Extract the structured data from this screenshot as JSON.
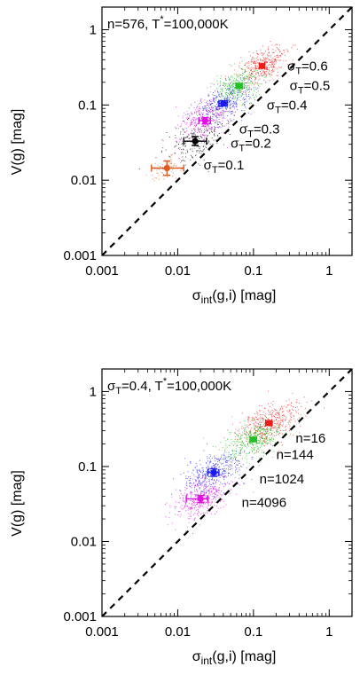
{
  "chart_data": [
    {
      "type": "scatter",
      "xscale": "log",
      "yscale": "log",
      "xlim": [
        0.001,
        2
      ],
      "ylim": [
        0.001,
        2
      ],
      "xticks": [
        "0.001",
        "0.01",
        "0.1",
        "1"
      ],
      "yticks": [
        "0.001",
        "0.01",
        "0.1",
        "1"
      ],
      "xlabel": {
        "main": "σ",
        "sub": "int",
        "tail": "(g,i) [mag]"
      },
      "ylabel": "V(g) [mag]",
      "header": {
        "prefix": "n=576, T",
        "sup": "*",
        "suffix": "=100,000K"
      },
      "diagonal": "y = x (dashed)",
      "grid": false,
      "series": [
        {
          "label": "σT=0.1",
          "color": "#e0581e",
          "x": 0.0072,
          "y": 0.0145,
          "xerr": [
            0.0045,
            0.012
          ],
          "yerr": [
            0.0116,
            0.018
          ],
          "cloud_spread": 0.12,
          "cloud_n": 60
        },
        {
          "label": "σT=0.2",
          "color": "#000000",
          "x": 0.017,
          "y": 0.033,
          "xerr": [
            0.012,
            0.024
          ],
          "yerr": [
            0.029,
            0.038
          ],
          "cloud_spread": 0.22,
          "cloud_n": 220
        },
        {
          "label": "σT=0.3",
          "color": "#e010e0",
          "x": 0.023,
          "y": 0.062,
          "xerr": [
            0.019,
            0.027
          ],
          "yerr": [
            0.056,
            0.068
          ],
          "cloud_spread": 0.2,
          "cloud_n": 320
        },
        {
          "label": "σT=0.4",
          "color": "#1a1aee",
          "x": 0.04,
          "y": 0.105,
          "xerr": [
            0.035,
            0.045
          ],
          "yerr": [
            0.097,
            0.114
          ],
          "cloud_spread": 0.2,
          "cloud_n": 360
        },
        {
          "label": "σT=0.5",
          "color": "#22c022",
          "x": 0.065,
          "y": 0.18,
          "xerr": [
            0.059,
            0.071
          ],
          "yerr": [
            0.167,
            0.193
          ],
          "cloud_spread": 0.18,
          "cloud_n": 360
        },
        {
          "label": "σT=0.6",
          "color": "#ee1a1a",
          "x": 0.13,
          "y": 0.33,
          "xerr": [
            0.12,
            0.14
          ],
          "yerr": [
            0.31,
            0.35
          ],
          "cloud_spread": 0.17,
          "cloud_n": 360
        }
      ],
      "annotations": [
        {
          "text": "σT=0.6",
          "x": 0.28,
          "y": 0.33
        },
        {
          "text": "σT=0.5",
          "x": 0.3,
          "y": 0.18
        },
        {
          "text": "σT=0.4",
          "x": 0.15,
          "y": 0.1
        },
        {
          "text": "σT=0.3",
          "x": 0.065,
          "y": 0.048
        },
        {
          "text": "σT=0.2",
          "x": 0.05,
          "y": 0.031
        },
        {
          "text": "σT=0.1",
          "x": 0.022,
          "y": 0.016
        }
      ]
    },
    {
      "type": "scatter",
      "xscale": "log",
      "yscale": "log",
      "xlim": [
        0.001,
        2
      ],
      "ylim": [
        0.001,
        2
      ],
      "xticks": [
        "0.001",
        "0.01",
        "0.1",
        "1"
      ],
      "yticks": [
        "0.001",
        "0.01",
        "0.1",
        "1"
      ],
      "xlabel": {
        "main": "σ",
        "sub": "int",
        "tail": "(g,i) [mag]"
      },
      "ylabel": "V(g) [mag]",
      "header": {
        "prefix": "σT=0.4, T",
        "sup": "*",
        "suffix": "=100,000K"
      },
      "diagonal": "y = x (dashed)",
      "grid": false,
      "series": [
        {
          "label": "n=16",
          "color": "#ee1a1a",
          "x": 0.16,
          "y": 0.38,
          "xerr": [
            0.145,
            0.175
          ],
          "yerr": [
            0.355,
            0.405
          ],
          "cloud_spread": 0.22,
          "cloud_n": 420
        },
        {
          "label": "n=144",
          "color": "#22c022",
          "x": 0.1,
          "y": 0.23,
          "xerr": [
            0.09,
            0.11
          ],
          "yerr": [
            0.215,
            0.245
          ],
          "cloud_spread": 0.2,
          "cloud_n": 420
        },
        {
          "label": "n=1024",
          "color": "#1a1aee",
          "x": 0.03,
          "y": 0.083,
          "xerr": [
            0.025,
            0.035
          ],
          "yerr": [
            0.074,
            0.093
          ],
          "cloud_spread": 0.2,
          "cloud_n": 400
        },
        {
          "label": "n=4096",
          "color": "#e010e0",
          "x": 0.02,
          "y": 0.037,
          "xerr": [
            0.013,
            0.025
          ],
          "yerr": [
            0.033,
            0.041
          ],
          "cloud_spread": 0.2,
          "cloud_n": 400
        }
      ],
      "annotations": [
        {
          "text": "n=16",
          "x": 0.36,
          "y": 0.24
        },
        {
          "text": "n=144",
          "x": 0.2,
          "y": 0.145
        },
        {
          "text": "n=1024",
          "x": 0.12,
          "y": 0.068
        },
        {
          "text": "n=4096",
          "x": 0.07,
          "y": 0.033
        }
      ]
    }
  ]
}
